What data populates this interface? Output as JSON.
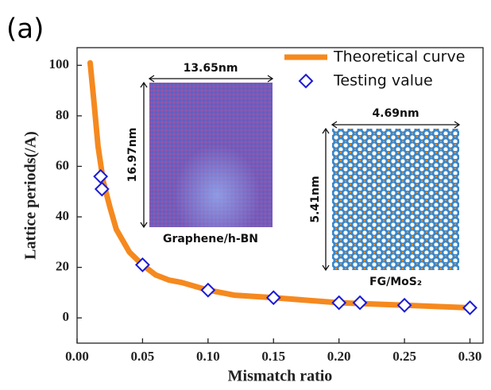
{
  "chart_data": {
    "type": "line",
    "panel_label": "(a)",
    "x_label": "Mismatch ratio",
    "y_label": "Lattice periods(/A)",
    "xlim": [
      0,
      0.31
    ],
    "ylim": [
      -10,
      107
    ],
    "xticks": [
      {
        "value": 0,
        "label": "0.00"
      },
      {
        "value": 0.05,
        "label": "0.05"
      },
      {
        "value": 0.1,
        "label": "0.10"
      },
      {
        "value": 0.15,
        "label": "0.15"
      },
      {
        "value": 0.2,
        "label": "0.20"
      },
      {
        "value": 0.25,
        "label": "0.25"
      },
      {
        "value": 0.3,
        "label": "0.30"
      }
    ],
    "yticks": [
      0,
      20,
      40,
      60,
      80,
      100
    ],
    "legend": "upper right",
    "series": [
      {
        "name": "Theoretical curve",
        "type": "line",
        "color": "#f5891f",
        "x": [
          0.01,
          0.013,
          0.016,
          0.02,
          0.025,
          0.03,
          0.04,
          0.05,
          0.06,
          0.07,
          0.08,
          0.1,
          0.12,
          0.15,
          0.2,
          0.25,
          0.3
        ],
        "values": [
          101,
          85,
          68,
          54,
          44,
          35,
          26,
          21,
          17,
          15,
          14,
          11,
          9,
          8,
          6,
          5,
          4
        ]
      },
      {
        "name": "Testing value",
        "type": "scatter",
        "color": "#1a1ad6",
        "x": [
          0.018,
          0.019,
          0.05,
          0.1,
          0.15,
          0.2,
          0.216,
          0.25,
          0.3
        ],
        "values": [
          56,
          51,
          21,
          11,
          8,
          6,
          6,
          5,
          4
        ]
      }
    ],
    "annotations": [
      {
        "width_label": "13.65nm",
        "height_label": "16.97nm",
        "label": "Graphene/h-BN"
      },
      {
        "width_label": "4.69nm",
        "height_label": "5.41nm",
        "label": "FG/MoS₂"
      }
    ]
  }
}
